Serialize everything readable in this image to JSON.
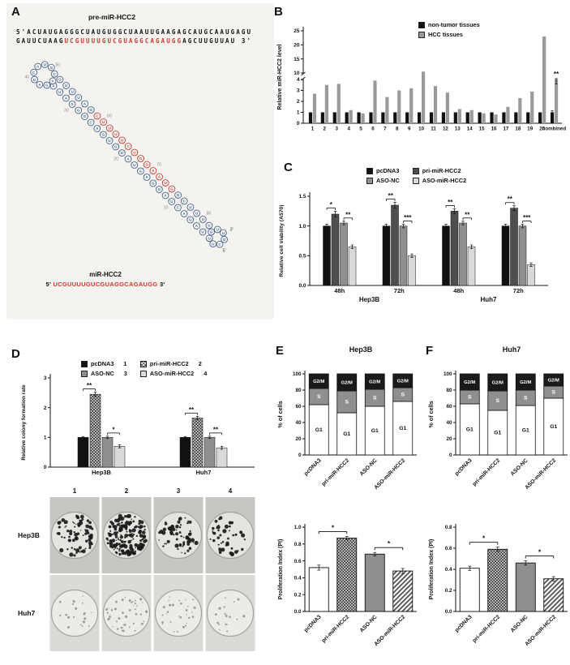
{
  "panel_a": {
    "label": "A",
    "title": "pre-miR-HCC2",
    "sequence_line1": "5'ACUAUGAGGGCUAUGUGGCUAAUUGAAGAGCAUGCAAUGAGU",
    "sequence_line2_black1": "GAUUCUAAG",
    "sequence_line2_red": "UCGUUUUGUCGUAGGCAGAUGG",
    "sequence_line2_black2": "AGCUUGUUAU 3'",
    "structure_position_labels": [
      "40",
      "50",
      "30",
      "60",
      "20",
      "70",
      "10",
      "80"
    ],
    "structure_end_labels": [
      "3'",
      "5'"
    ],
    "mir_title": "miR-HCC2",
    "mir_prefix": "5'",
    "mir_sequence": "UCGUUUUGUCGUAGGCAGAUGG",
    "mir_suffix": "3'"
  },
  "panel_b": {
    "label": "B",
    "legend": [
      {
        "label": "non-tumor tissues",
        "color": "#111111"
      },
      {
        "label": "HCC tissues",
        "color": "#9a9a9a"
      }
    ]
  },
  "panel_c": {
    "label": "C",
    "legend": [
      {
        "label": "pcDNA3",
        "color": "#111111"
      },
      {
        "label": "pri-miR-HCC2",
        "color": "#4f4f4f"
      },
      {
        "label": "ASO-NC",
        "color": "#8f8f8f"
      },
      {
        "label": "ASO-miR-HCC2",
        "color": "#d9d9d9"
      }
    ]
  },
  "panel_d": {
    "label": "D",
    "legend": [
      {
        "label": "pcDNA3",
        "num": "1",
        "swatch": "sw-black"
      },
      {
        "label": "pri-miR-HCC2",
        "num": "2",
        "swatch": "sw-checker"
      },
      {
        "label": "ASO-NC",
        "num": "3",
        "swatch": "sw-gray"
      },
      {
        "label": "ASO-miR-HCC2",
        "num": "4",
        "swatch": "sw-light"
      }
    ],
    "dish_columns": [
      "1",
      "2",
      "3",
      "4"
    ],
    "dish_rows": [
      "Hep3B",
      "Huh7"
    ]
  },
  "panel_e": {
    "label": "E",
    "title": "Hep3B"
  },
  "panel_f": {
    "label": "F",
    "title": "Huh7"
  },
  "chart_data": [
    {
      "id": "panel_b",
      "type": "bar",
      "ylabel": "Relative miR-HCC2 level",
      "categories": [
        "1",
        "2",
        "3",
        "4",
        "5",
        "6",
        "7",
        "8",
        "9",
        "10",
        "11",
        "12",
        "13",
        "14",
        "15",
        "16",
        "17",
        "18",
        "19",
        "20",
        "combined"
      ],
      "series": [
        {
          "name": "non-tumor tissues",
          "color": "#111111",
          "values": [
            1,
            1,
            1,
            1,
            1,
            1,
            1,
            1,
            1,
            1,
            1,
            1,
            1,
            1,
            1,
            1,
            1,
            1,
            1,
            1,
            1
          ]
        },
        {
          "name": "HCC tissues",
          "color": "#9a9a9a",
          "values": [
            2.7,
            3.5,
            3.6,
            1.2,
            0.9,
            3.9,
            2.4,
            3.0,
            3.2,
            10.5,
            3.4,
            2.8,
            1.3,
            1.2,
            0.9,
            0.8,
            1.5,
            2.3,
            2.9,
            23.0,
            4.2
          ]
        }
      ],
      "axis_break": {
        "lower_max": 4,
        "upper_min": 10,
        "upper_max": 25
      },
      "lower_ticks": [
        0,
        1,
        2,
        3,
        4
      ],
      "upper_ticks": [
        10,
        15,
        20,
        25
      ],
      "combined_errors": [
        0.15,
        0.6
      ],
      "annotation": {
        "category": "combined",
        "text": "**"
      }
    },
    {
      "id": "panel_c",
      "type": "grouped_bar",
      "ylabel": "Relative cell viability (A570)",
      "ylim": [
        0,
        1.5
      ],
      "yticks": [
        0,
        0.5,
        1.0,
        1.5
      ],
      "groups": [
        "48h",
        "72h",
        "48h",
        "72h"
      ],
      "sections": [
        {
          "label": "Hep3B",
          "span": [
            0,
            1
          ]
        },
        {
          "label": "Huh7",
          "span": [
            2,
            3
          ]
        }
      ],
      "series": [
        {
          "name": "pcDNA3",
          "color": "#111111",
          "values": [
            1.0,
            1.0,
            1.0,
            1.0
          ],
          "errors": [
            0.03,
            0.03,
            0.03,
            0.03
          ]
        },
        {
          "name": "pri-miR-HCC2",
          "color": "#4f4f4f",
          "values": [
            1.2,
            1.35,
            1.25,
            1.3
          ],
          "errors": [
            0.05,
            0.05,
            0.04,
            0.04
          ]
        },
        {
          "name": "ASO-NC",
          "color": "#8f8f8f",
          "values": [
            1.05,
            1.0,
            1.05,
            1.0
          ],
          "errors": [
            0.03,
            0.03,
            0.03,
            0.03
          ]
        },
        {
          "name": "ASO-miR-HCC2",
          "color": "#d9d9d9",
          "values": [
            0.65,
            0.5,
            0.65,
            0.35
          ],
          "errors": [
            0.03,
            0.03,
            0.03,
            0.03
          ]
        }
      ],
      "significance": [
        {
          "group": 0,
          "bars": [
            0,
            1
          ],
          "text": "*"
        },
        {
          "group": 0,
          "bars": [
            2,
            3
          ],
          "text": "**"
        },
        {
          "group": 1,
          "bars": [
            0,
            1
          ],
          "text": "**"
        },
        {
          "group": 1,
          "bars": [
            2,
            3
          ],
          "text": "***"
        },
        {
          "group": 2,
          "bars": [
            0,
            1
          ],
          "text": "**"
        },
        {
          "group": 2,
          "bars": [
            2,
            3
          ],
          "text": "**"
        },
        {
          "group": 3,
          "bars": [
            0,
            1
          ],
          "text": "**"
        },
        {
          "group": 3,
          "bars": [
            2,
            3
          ],
          "text": "***"
        }
      ]
    },
    {
      "id": "panel_d",
      "type": "grouped_bar",
      "ylabel": "Relative colony formation rate",
      "ylim": [
        0,
        3
      ],
      "yticks": [
        0,
        1,
        2,
        3
      ],
      "groups": [
        "Hep3B",
        "Huh7"
      ],
      "series": [
        {
          "name": "pcDNA3",
          "color": "#111111",
          "values": [
            1.0,
            1.0
          ],
          "errors": [
            0.03,
            0.03
          ]
        },
        {
          "name": "pri-miR-HCC2",
          "style": "checker",
          "values": [
            2.45,
            1.65
          ],
          "errors": [
            0.07,
            0.06
          ]
        },
        {
          "name": "ASO-NC",
          "color": "#8f8f8f",
          "values": [
            1.0,
            1.0
          ],
          "errors": [
            0.04,
            0.04
          ]
        },
        {
          "name": "ASO-miR-HCC2",
          "color": "#d9d9d9",
          "values": [
            0.7,
            0.65
          ],
          "errors": [
            0.05,
            0.05
          ]
        }
      ],
      "significance": [
        {
          "group": 0,
          "bars": [
            0,
            1
          ],
          "text": "**"
        },
        {
          "group": 0,
          "bars": [
            2,
            3
          ],
          "text": "*"
        },
        {
          "group": 1,
          "bars": [
            0,
            1
          ],
          "text": "**"
        },
        {
          "group": 1,
          "bars": [
            2,
            3
          ],
          "text": "**"
        }
      ]
    },
    {
      "id": "panel_e_cycle",
      "type": "stacked_bar",
      "title": "Hep3B",
      "ylabel": "% of cells",
      "yticks": [
        0,
        20,
        40,
        60,
        80,
        100
      ],
      "categories": [
        "pcDNA3",
        "pri-miR-HCC2",
        "ASO-NC",
        "ASO-miR-HCC2"
      ],
      "segments": [
        {
          "name": "G1",
          "color": "#ffffff",
          "text_color": "#111111",
          "values": [
            62,
            52,
            60,
            66
          ]
        },
        {
          "name": "S",
          "color": "#8f8f8f",
          "text_color": "#ffffff",
          "values": [
            20,
            27,
            21,
            17
          ]
        },
        {
          "name": "G2/M",
          "color": "#1a1a1a",
          "text_color": "#ffffff",
          "values": [
            18,
            21,
            19,
            17
          ]
        }
      ]
    },
    {
      "id": "panel_e_pi",
      "type": "bar",
      "ylabel": "Proliferation Index (PI)",
      "ylim": [
        0,
        1.0
      ],
      "yticks": [
        0,
        0.2,
        0.4,
        0.6,
        0.8,
        1.0
      ],
      "categories": [
        "pcDNA3",
        "pri-miR-HCC2",
        "ASO-NC",
        "ASO-miR-HCC2"
      ],
      "values": [
        0.52,
        0.87,
        0.68,
        0.48
      ],
      "errors": [
        0.03,
        0.02,
        0.02,
        0.03
      ],
      "styles": [
        "white",
        "checker",
        "gray",
        "stripes"
      ],
      "significance": [
        {
          "bars": [
            0,
            1
          ],
          "text": "*"
        },
        {
          "bars": [
            2,
            3
          ],
          "text": "*"
        }
      ]
    },
    {
      "id": "panel_f_cycle",
      "type": "stacked_bar",
      "title": "Huh7",
      "ylabel": "% of cells",
      "yticks": [
        0,
        20,
        40,
        60,
        80,
        100
      ],
      "categories": [
        "pcDNA3",
        "pri-miR-HCC2",
        "ASO-NC",
        "ASO-miR-HCC2"
      ],
      "segments": [
        {
          "name": "G1",
          "color": "#ffffff",
          "text_color": "#111111",
          "values": [
            63,
            55,
            61,
            70
          ]
        },
        {
          "name": "S",
          "color": "#8f8f8f",
          "text_color": "#ffffff",
          "values": [
            17,
            24,
            19,
            15
          ]
        },
        {
          "name": "G2/M",
          "color": "#1a1a1a",
          "text_color": "#ffffff",
          "values": [
            20,
            21,
            20,
            15
          ]
        }
      ]
    },
    {
      "id": "panel_f_pi",
      "type": "bar",
      "ylabel": "Proliferation Index (PI)",
      "ylim": [
        0,
        0.8
      ],
      "yticks": [
        0,
        0.2,
        0.4,
        0.6,
        0.8
      ],
      "categories": [
        "pcDNA3",
        "pri-miR-HCC2",
        "ASO-NC",
        "ASO-miR-HCC2"
      ],
      "values": [
        0.41,
        0.59,
        0.46,
        0.31
      ],
      "errors": [
        0.02,
        0.02,
        0.02,
        0.02
      ],
      "styles": [
        "white",
        "checker",
        "gray",
        "stripes"
      ],
      "significance": [
        {
          "bars": [
            0,
            1
          ],
          "text": "*"
        },
        {
          "bars": [
            2,
            3
          ],
          "text": "*"
        }
      ]
    }
  ]
}
